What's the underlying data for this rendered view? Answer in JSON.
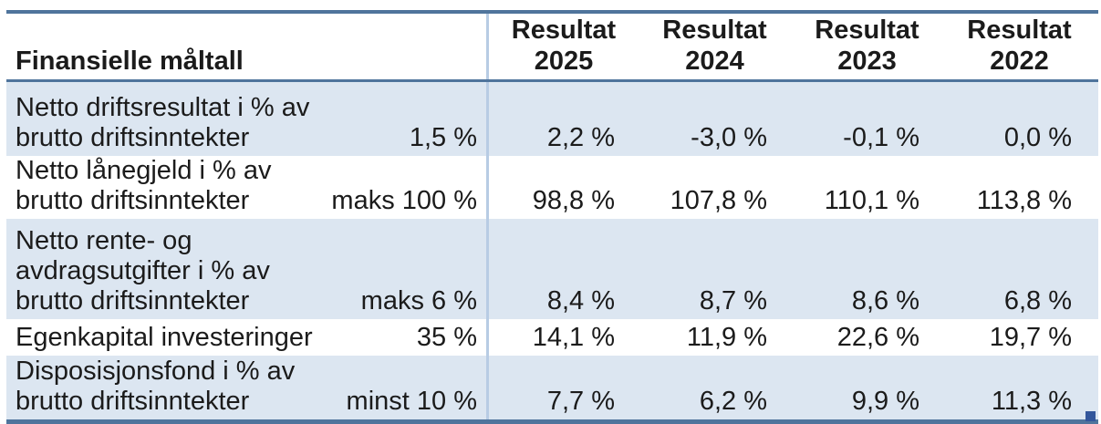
{
  "table": {
    "header": {
      "label": "Finansielle måltall",
      "columns": [
        {
          "line1": "Resultat",
          "line2": "2025"
        },
        {
          "line1": "Resultat",
          "line2": "2024"
        },
        {
          "line1": "Resultat",
          "line2": "2023"
        },
        {
          "line1": "Resultat",
          "line2": "2022"
        }
      ]
    },
    "rows": [
      {
        "label_lines": [
          "Netto driftsresultat i % av",
          "brutto driftsinntekter"
        ],
        "target": "1,5 %",
        "values": [
          "2,2 %",
          "-3,0 %",
          "-0,1 %",
          "0,0 %"
        ]
      },
      {
        "label_lines": [
          "Netto lånegjeld i % av",
          "brutto driftsinntekter"
        ],
        "target": "maks 100 %",
        "values": [
          "98,8 %",
          "107,8 %",
          "110,1 %",
          "113,8 %"
        ]
      },
      {
        "label_lines": [
          "Netto rente- og",
          "avdragsutgifter i % av",
          "brutto driftsinntekter"
        ],
        "target": "maks 6 %",
        "values": [
          "8,4 %",
          "8,7 %",
          "8,6 %",
          "6,8 %"
        ]
      },
      {
        "label_lines": [
          "Egenkapital investeringer"
        ],
        "target": "35 %",
        "values": [
          "14,1 %",
          "11,9 %",
          "22,6 %",
          "19,7 %"
        ]
      },
      {
        "label_lines": [
          "Disposisjonsfond i % av",
          "brutto driftsinntekter"
        ],
        "target": "minst 10 %",
        "values": [
          "7,7 %",
          "6,2 %",
          "9,9 %",
          "11,3 %"
        ]
      }
    ],
    "colors": {
      "row_fill": "#dce6f1",
      "strong_border": "#4f749c",
      "light_separator": "#b8cce4",
      "handle": "#33569b",
      "text": "#1b1b1b"
    }
  }
}
